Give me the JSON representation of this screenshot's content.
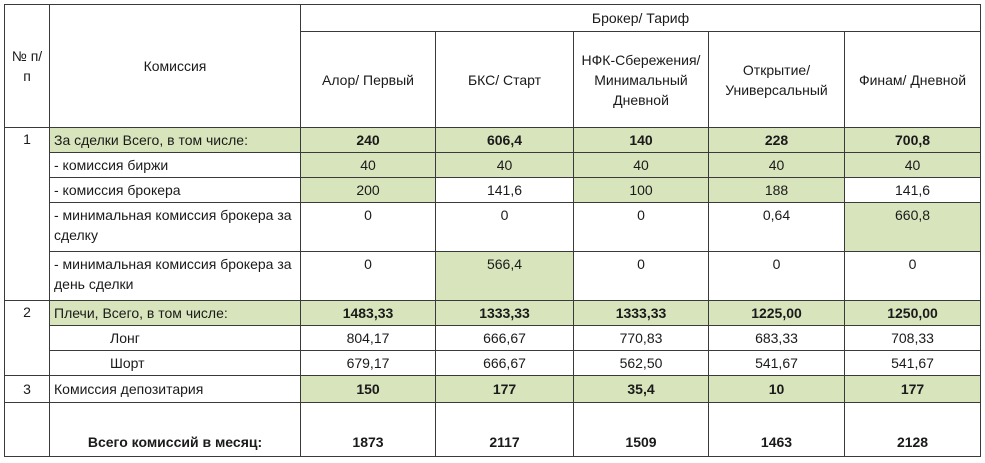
{
  "header": {
    "num_col": "№ п/п",
    "commission_col": "Комиссия",
    "broker_tariff": "Брокер/ Тариф",
    "brokers": [
      "Алор/ Первый",
      "БКС/ Старт",
      "НФК-Сбережения/ Минимальный Дневной",
      "Открытие/ Универсальный",
      "Финам/ Дневной"
    ]
  },
  "rows": [
    {
      "num": "1",
      "label": "За сделки Всего, в том числе:",
      "values": [
        "240",
        "606,4",
        "140",
        "228",
        "700,8"
      ]
    },
    {
      "num": "",
      "label": "- комиссия биржи",
      "values": [
        "40",
        "40",
        "40",
        "40",
        "40"
      ]
    },
    {
      "num": "",
      "label": "- комиссия брокера",
      "values": [
        "200",
        "141,6",
        "100",
        "188",
        "141,6"
      ]
    },
    {
      "num": "",
      "label": "- минимальная комиссия брокера за сделку",
      "values": [
        "0",
        "0",
        "0",
        "0,64",
        "660,8"
      ]
    },
    {
      "num": "",
      "label": "- минимальная комиссия брокера за день сделки",
      "values": [
        "0",
        "566,4",
        "0",
        "0",
        "0"
      ]
    },
    {
      "num": "2",
      "label": "Плечи, Всего, в том числе:",
      "values": [
        "1483,33",
        "1333,33",
        "1333,33",
        "1225,00",
        "1250,00"
      ]
    },
    {
      "num": "",
      "label": "Лонг",
      "values": [
        "804,17",
        "666,67",
        "770,83",
        "683,33",
        "708,33"
      ]
    },
    {
      "num": "",
      "label": "Шорт",
      "values": [
        "679,17",
        "666,67",
        "562,50",
        "541,67",
        "541,67"
      ]
    },
    {
      "num": "3",
      "label": "Комиссия депозитария",
      "values": [
        "150",
        "177",
        "35,4",
        "10",
        "177"
      ]
    }
  ],
  "total": {
    "label": "Всего комиссий в месяц:",
    "values": [
      "1873",
      "2117",
      "1509",
      "1463",
      "2128"
    ]
  },
  "colors": {
    "highlight": "#d8e4bc",
    "border": "#3a3a3a"
  }
}
